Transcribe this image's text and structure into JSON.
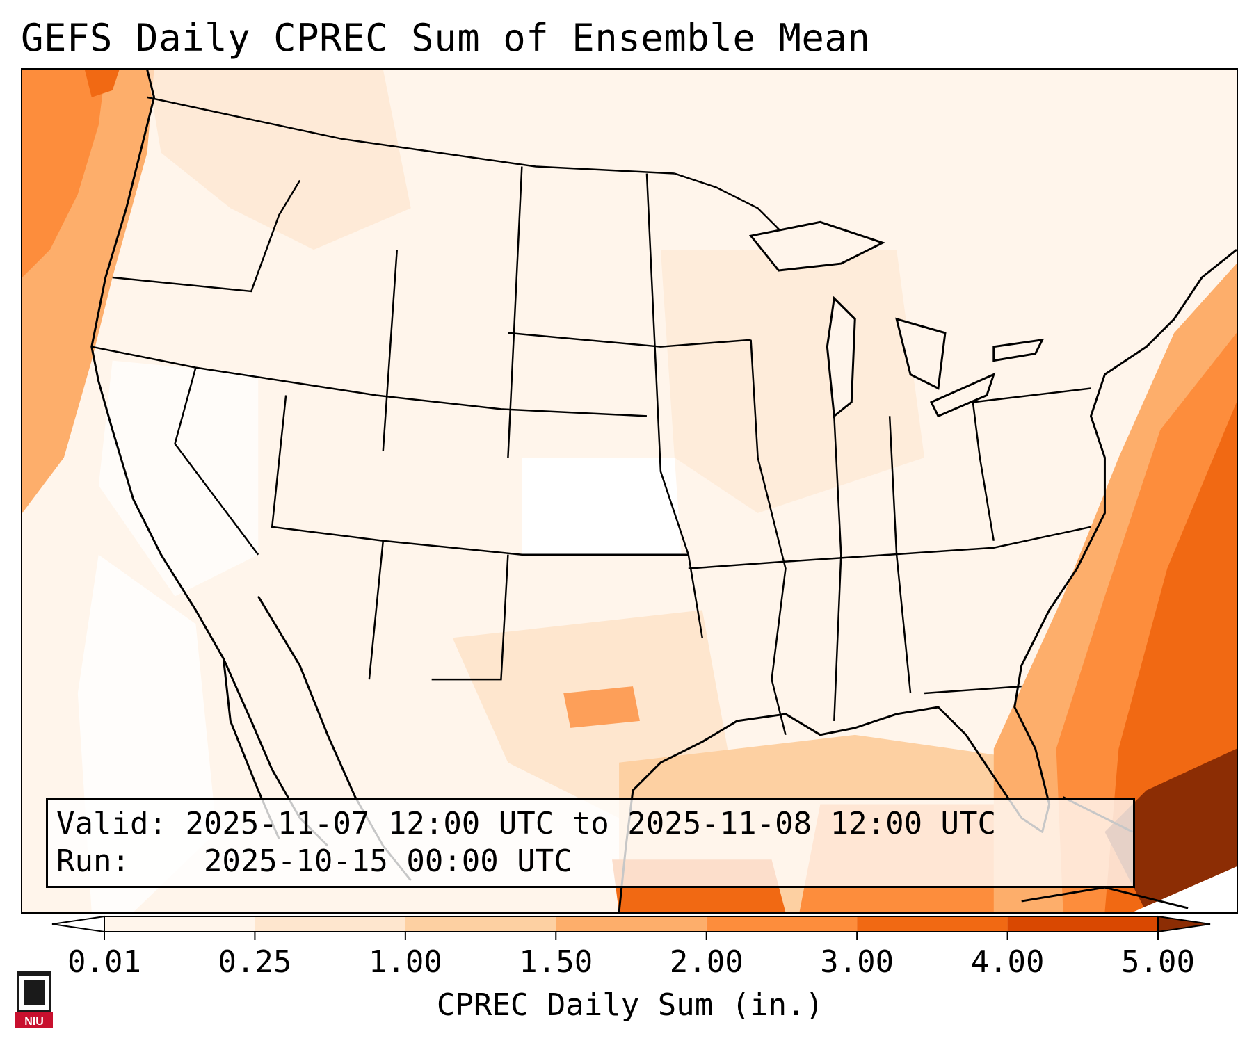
{
  "title": "GEFS Daily CPREC Sum of Ensemble Mean",
  "info": {
    "valid_label": "Valid:",
    "valid_value": "2025-11-07 12:00 UTC to 2025-11-08 12:00 UTC",
    "run_label": "Run:",
    "run_value": "2025-10-15 00:00 UTC"
  },
  "colorbar": {
    "label": "CPREC Daily Sum (in.)",
    "ticks": [
      "0.01",
      "0.25",
      "1.00",
      "1.50",
      "2.00",
      "3.00",
      "4.00",
      "5.00"
    ],
    "colors": [
      "#fff5eb",
      "#fee6ce",
      "#fdd0a2",
      "#fdae6b",
      "#fd8d3c",
      "#f16913",
      "#d94801",
      "#8c2d04"
    ],
    "extend": "both"
  },
  "logo": {
    "text": "NIU",
    "colors": {
      "red": "#c8102e",
      "dark": "#1a1a1a"
    }
  },
  "map": {
    "projection": "Lambert Conformal",
    "region": "Continental United States",
    "features": [
      "coastlines",
      "state-borders",
      "country-borders"
    ]
  }
}
